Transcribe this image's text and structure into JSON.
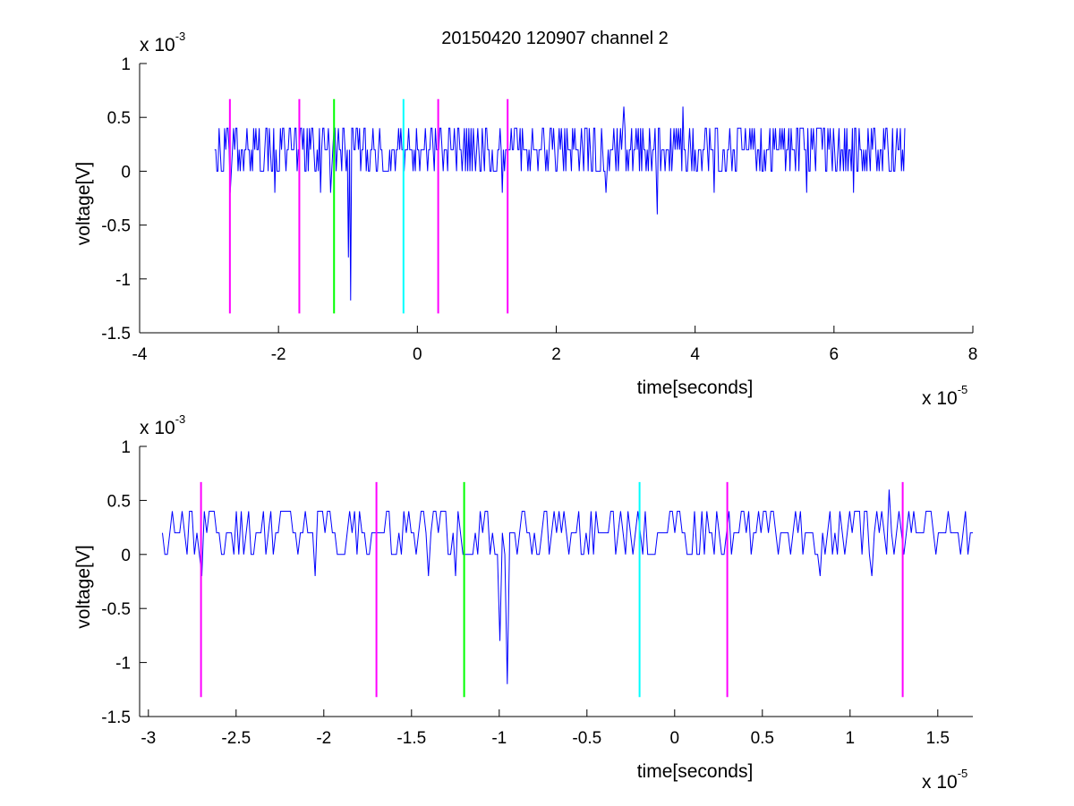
{
  "figure": {
    "title": "20150420 120907 channel 2"
  },
  "colors": {
    "signal": "#0000ff",
    "marker_magenta": "#ff00ff",
    "marker_green": "#00ff00",
    "marker_cyan": "#00ffff",
    "axes": "#000000"
  },
  "chart_data": [
    {
      "type": "line",
      "title": "20150420 120907 channel 2",
      "xlabel": "time[seconds]",
      "ylabel": "voltage[V]",
      "x_multiplier": "x 10",
      "x_exponent": "-5",
      "y_multiplier": "x 10",
      "y_exponent": "-3",
      "xlim": [
        -4,
        8
      ],
      "ylim": [
        -1.5,
        1
      ],
      "x_ticks": [
        "-4",
        "-2",
        "0",
        "2",
        "4",
        "6",
        "8"
      ],
      "y_ticks": [
        "1",
        "0.5",
        "0",
        "-0.5",
        "-1",
        "-1.5"
      ],
      "grid": false,
      "signal": {
        "x_start": -2.92,
        "x_end": 7.02,
        "levels": [
          0,
          0.2,
          0.4
        ],
        "baseline": 0.2,
        "dips": [
          {
            "x": -2.7,
            "y": -0.2
          },
          {
            "x": -2.05,
            "y": -0.2
          },
          {
            "x": -1.4,
            "y": -0.2
          },
          {
            "x": -1.25,
            "y": -0.2
          },
          {
            "x": -1.0,
            "y": -0.8
          },
          {
            "x": -0.96,
            "y": -1.2
          },
          {
            "x": 1.23,
            "y": -0.2
          },
          {
            "x": 2.72,
            "y": -0.2
          },
          {
            "x": 3.45,
            "y": -0.4
          },
          {
            "x": 4.28,
            "y": -0.2
          },
          {
            "x": 5.6,
            "y": -0.2
          },
          {
            "x": 6.28,
            "y": -0.2
          }
        ],
        "peaks": [
          {
            "x": 2.97,
            "y": 0.6
          },
          {
            "x": 3.82,
            "y": 0.6
          }
        ]
      },
      "markers": [
        {
          "x": -2.7,
          "color": "magenta",
          "y_top": 0.67,
          "y_bottom": -1.32
        },
        {
          "x": -1.7,
          "color": "magenta",
          "y_top": 0.67,
          "y_bottom": -1.32
        },
        {
          "x": -1.2,
          "color": "green",
          "y_top": 0.67,
          "y_bottom": -1.32
        },
        {
          "x": -0.2,
          "color": "cyan",
          "y_top": 0.67,
          "y_bottom": -1.32
        },
        {
          "x": 0.3,
          "color": "magenta",
          "y_top": 0.67,
          "y_bottom": -1.32
        },
        {
          "x": 1.3,
          "color": "magenta",
          "y_top": 0.67,
          "y_bottom": -1.32
        }
      ]
    },
    {
      "type": "line",
      "xlabel": "time[seconds]",
      "ylabel": "voltage[V]",
      "x_multiplier": "x 10",
      "x_exponent": "-5",
      "y_multiplier": "x 10",
      "y_exponent": "-3",
      "xlim": [
        -3.05,
        1.7
      ],
      "ylim": [
        -1.5,
        1
      ],
      "x_ticks": [
        "-3",
        "-2.5",
        "-2",
        "-1.5",
        "-1",
        "-0.5",
        "0",
        "0.5",
        "1",
        "1.5"
      ],
      "y_ticks": [
        "1",
        "0.5",
        "0",
        "-0.5",
        "-1",
        "-1.5"
      ],
      "grid": false,
      "signal": {
        "x_start": -2.92,
        "x_end": 1.7,
        "levels": [
          0,
          0.2,
          0.4
        ],
        "baseline": 0.2,
        "dips": [
          {
            "x": -2.7,
            "y": -0.2
          },
          {
            "x": -2.05,
            "y": -0.2
          },
          {
            "x": -1.4,
            "y": -0.2
          },
          {
            "x": -1.25,
            "y": -0.2
          },
          {
            "x": -1.0,
            "y": -0.8
          },
          {
            "x": -0.96,
            "y": -1.2
          },
          {
            "x": 0.83,
            "y": -0.2
          },
          {
            "x": 1.12,
            "y": -0.2
          }
        ],
        "peaks": [
          {
            "x": 1.22,
            "y": 0.6
          }
        ]
      },
      "markers": [
        {
          "x": -2.7,
          "color": "magenta",
          "y_top": 0.67,
          "y_bottom": -1.32
        },
        {
          "x": -1.7,
          "color": "magenta",
          "y_top": 0.67,
          "y_bottom": -1.32
        },
        {
          "x": -1.2,
          "color": "green",
          "y_top": 0.67,
          "y_bottom": -1.32
        },
        {
          "x": -0.2,
          "color": "cyan",
          "y_top": 0.67,
          "y_bottom": -1.32
        },
        {
          "x": 0.3,
          "color": "magenta",
          "y_top": 0.67,
          "y_bottom": -1.32
        },
        {
          "x": 1.3,
          "color": "magenta",
          "y_top": 0.67,
          "y_bottom": -1.32
        }
      ]
    }
  ]
}
